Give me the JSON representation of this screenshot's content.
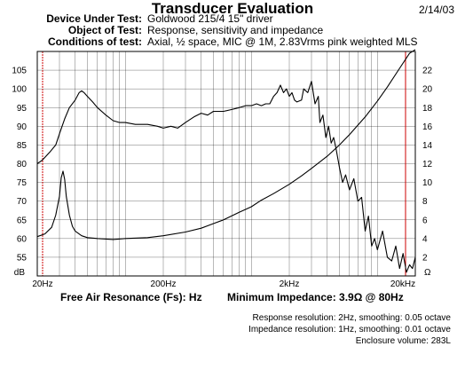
{
  "header": {
    "title": "Transducer Evaluation",
    "date": "2/14/03",
    "rows": [
      {
        "label": "Device Under Test:",
        "value": "Goldwood 215/4 15\" driver"
      },
      {
        "label": "Object of Test:",
        "value": "Response, sensitivity and impedance"
      },
      {
        "label": "Conditions of test:",
        "value": "Axial, ½ space, MIC @ 1M, 2.83Vrms pink weighted MLS"
      }
    ]
  },
  "results": {
    "fs_text": "Free Air Resonance (Fs): Hz",
    "impedance_text": "Minimum Impedance: 3.9Ω @ 80Hz"
  },
  "notes": [
    "Response resolution: 2Hz, smoothing: 0.05 octave",
    "Impedance resolution: 1Hz, smoothing: 0.01 octave",
    "Enclosure volume: 283L"
  ],
  "chart_data": {
    "type": "line",
    "xscale": "log",
    "xlim": [
      20,
      20000
    ],
    "x_ticks": [
      {
        "value": 20,
        "label": "20Hz"
      },
      {
        "value": 200,
        "label": "200Hz"
      },
      {
        "value": 2000,
        "label": "2kHz"
      },
      {
        "value": 20000,
        "label": "20kHz"
      }
    ],
    "ylim_left": [
      50,
      110
    ],
    "left_ticks": [
      "55",
      "60",
      "65",
      "70",
      "75",
      "80",
      "85",
      "90",
      "95",
      "100",
      "105"
    ],
    "left_unit": "dB",
    "ylim_right": [
      0,
      24
    ],
    "right_ticks": [
      "2",
      "4",
      "6",
      "8",
      "10",
      "12",
      "14",
      "16",
      "18",
      "20",
      "22"
    ],
    "right_unit": "Ω",
    "grid": true,
    "markers_hz": [
      20,
      20000
    ],
    "marker_color": "#cc0000",
    "series": [
      {
        "axis": "left",
        "x": [
          20,
          22,
          25,
          28,
          30,
          33,
          36,
          40,
          43,
          45,
          47,
          50,
          55,
          60,
          70,
          80,
          90,
          100,
          120,
          150,
          180,
          200,
          230,
          260,
          300,
          350,
          400,
          450,
          500,
          600,
          700,
          800,
          900,
          1000,
          1100,
          1200,
          1300,
          1400,
          1500,
          1600,
          1700,
          1800,
          1900,
          2000,
          2100,
          2200,
          2300,
          2500,
          2600,
          2800,
          3000,
          3200,
          3400,
          3500,
          3700,
          3900,
          4100,
          4300,
          4500,
          4700,
          5000,
          5300,
          5600,
          6000,
          6500,
          7000,
          7500,
          8000,
          8500,
          9000,
          9500,
          10000,
          11000,
          12000,
          13000,
          14000,
          15000,
          16000,
          17000,
          18000,
          19000,
          20000
        ],
        "y": [
          80,
          81,
          83,
          85,
          88,
          92,
          95,
          97,
          99,
          99.5,
          99,
          98,
          96.5,
          95,
          93,
          91.5,
          91,
          91,
          90.5,
          90.5,
          90,
          89.5,
          90,
          89.5,
          91,
          92.5,
          93.5,
          93,
          94,
          94,
          94.5,
          95,
          95.5,
          95.5,
          96,
          95.5,
          96,
          96,
          98,
          99,
          101,
          99,
          100,
          98,
          99,
          97,
          96.5,
          97,
          100,
          99,
          102,
          96,
          98,
          91,
          93,
          87,
          90,
          85.5,
          87,
          84,
          79,
          75,
          77,
          73,
          76,
          70,
          71,
          62,
          66,
          58,
          60,
          57,
          62,
          55,
          54,
          58,
          52,
          56,
          51,
          53,
          52,
          55
        ]
      },
      {
        "axis": "right",
        "x": [
          20,
          23,
          26,
          28,
          30,
          31,
          32,
          33,
          34,
          36,
          38,
          40,
          45,
          50,
          60,
          80,
          100,
          150,
          200,
          300,
          400,
          500,
          600,
          800,
          1000,
          1200,
          1500,
          2000,
          2500,
          3000,
          4000,
          5000,
          6000,
          8000,
          10000,
          12000,
          15000,
          18000,
          20000
        ],
        "y": [
          4.2,
          4.5,
          5.2,
          6.5,
          8.5,
          10.5,
          11.2,
          10.3,
          8.5,
          6.5,
          5.3,
          4.8,
          4.3,
          4.1,
          4.0,
          3.9,
          4.0,
          4.1,
          4.3,
          4.7,
          5.1,
          5.6,
          6.0,
          6.8,
          7.4,
          8.1,
          8.8,
          9.8,
          10.7,
          11.5,
          12.8,
          14.0,
          15.1,
          17.0,
          18.7,
          20.2,
          22.2,
          23.8,
          24.2
        ]
      }
    ]
  }
}
